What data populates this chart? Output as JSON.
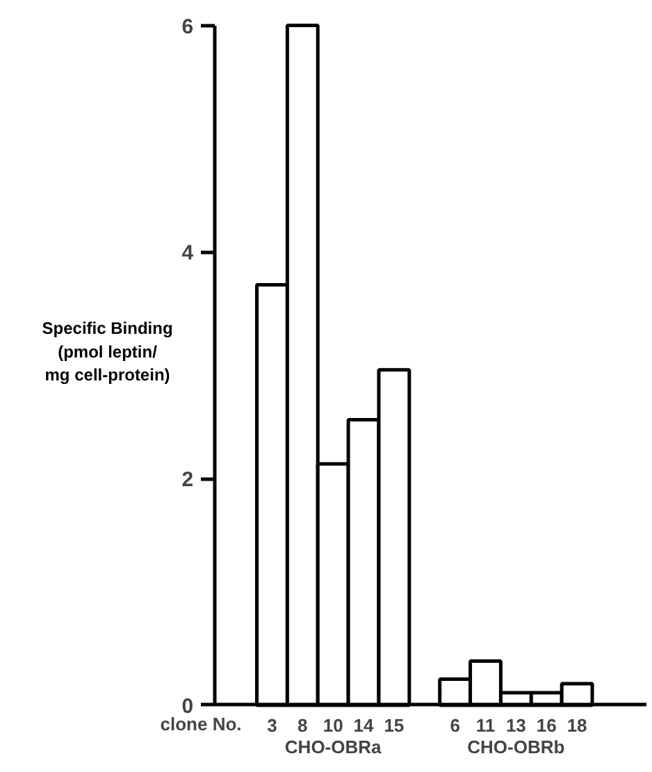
{
  "chart_data": {
    "type": "bar",
    "ylabel": "Specific Binding\n(pmol leptin/\nmg cell-protein)",
    "xlabel": "clone No.",
    "categories": [
      "3",
      "8",
      "10",
      "14",
      "15",
      null,
      "6",
      "11",
      "13",
      "16",
      "18"
    ],
    "series": [
      {
        "name": "CHO-OBRa",
        "color": "#ffffff",
        "values": [
          3.71,
          6,
          2.13,
          2.52,
          2.96,
          null,
          null,
          null,
          null,
          null,
          null
        ]
      },
      {
        "name": "CHO-OBRb",
        "color": "#ffffff",
        "values": [
          null,
          null,
          null,
          null,
          null,
          null,
          0.23,
          0.39,
          0.11,
          0.11,
          0.19
        ]
      }
    ],
    "ylim": [
      0,
      6
    ],
    "yticks": [
      0,
      2,
      4,
      6
    ],
    "grid": false
  }
}
